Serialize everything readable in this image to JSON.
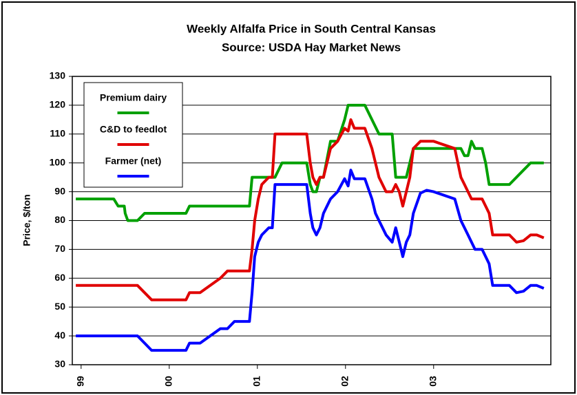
{
  "chart_data": {
    "type": "line",
    "title": "Weekly Alfalfa Price in South Central Kansas",
    "subtitle": "Source: USDA Hay Market News",
    "y_label": "Price, $/ton",
    "x": [
      1998.94,
      1999.25,
      1999.37,
      1999.42,
      1999.49,
      1999.5,
      1999.53,
      1999.64,
      1999.72,
      1999.8,
      1999.95,
      2000.19,
      2000.23,
      2000.35,
      2000.58,
      2000.66,
      2000.74,
      2000.85,
      2000.91,
      2000.94,
      2000.97,
      2001.01,
      2001.05,
      2001.13,
      2001.17,
      2001.2,
      2001.28,
      2001.44,
      2001.56,
      2001.6,
      2001.63,
      2001.67,
      2001.71,
      2001.75,
      2001.83,
      2001.91,
      2001.99,
      2002.03,
      2002.06,
      2002.1,
      2002.14,
      2002.22,
      2002.3,
      2002.34,
      2002.38,
      2002.46,
      2002.53,
      2002.57,
      2002.61,
      2002.65,
      2002.69,
      2002.73,
      2002.77,
      2002.85,
      2002.92,
      2003.0,
      2003.24,
      2003.31,
      2003.35,
      2003.39,
      2003.43,
      2003.47,
      2003.55,
      2003.59,
      2003.63,
      2003.67,
      2003.7,
      2003.86,
      2003.94,
      2004.02,
      2004.1,
      2004.17,
      2004.25
    ],
    "series": [
      {
        "name": "Premium dairy",
        "color": "#00a000",
        "values": [
          87.5,
          87.5,
          87.5,
          85,
          85,
          82.5,
          80,
          80,
          82.5,
          82.5,
          82.5,
          82.5,
          85,
          85,
          85,
          85,
          85,
          85,
          85,
          95,
          95,
          95,
          95,
          95,
          95,
          95,
          100,
          100,
          100,
          92.5,
          90,
          90,
          95,
          95,
          107.5,
          107.5,
          115,
          120,
          120,
          120,
          120,
          120,
          115,
          112.5,
          110,
          110,
          110,
          95,
          95,
          95,
          95,
          100,
          105,
          105,
          105,
          105,
          105,
          105,
          102.5,
          102.5,
          107.5,
          105,
          105,
          100,
          92.5,
          92.5,
          92.5,
          92.5,
          95,
          97.5,
          100,
          100,
          100
        ]
      },
      {
        "name": "C&D to feedlot",
        "color": "#e00000",
        "values": [
          57.5,
          57.5,
          57.5,
          57.5,
          57.5,
          57.5,
          57.5,
          57.5,
          55,
          52.5,
          52.5,
          52.5,
          55,
          55,
          60,
          62.5,
          62.5,
          62.5,
          62.5,
          70,
          80,
          87.5,
          92.5,
          95,
          95,
          110,
          110,
          110,
          110,
          100,
          95,
          92.5,
          95,
          95,
          105,
          107.5,
          112,
          111,
          115,
          112,
          112,
          112,
          105,
          100,
          95,
          90,
          90,
          92.5,
          90,
          85,
          90,
          95,
          105,
          107.5,
          107.5,
          107.5,
          105,
          95,
          92.5,
          90,
          87.5,
          87.5,
          87.5,
          85,
          82.5,
          75,
          75,
          75,
          72.5,
          73,
          75,
          75,
          74
        ]
      },
      {
        "name": "Farmer (net)",
        "color": "#0000ff",
        "values": [
          40,
          40,
          40,
          40,
          40,
          40,
          40,
          40,
          37.5,
          35,
          35,
          35,
          37.5,
          37.5,
          42.5,
          42.5,
          45,
          45,
          45,
          55,
          67.5,
          72.5,
          75,
          77.5,
          77.5,
          92.5,
          92.5,
          92.5,
          92.5,
          82.5,
          77.5,
          75,
          77.5,
          82.5,
          87.5,
          90,
          94.5,
          92,
          97.5,
          94.5,
          94.5,
          94.5,
          87.5,
          82.5,
          80,
          75,
          72.5,
          77.5,
          72.5,
          67.5,
          72.5,
          75,
          82.5,
          89.5,
          90.5,
          90,
          87.5,
          80,
          77.5,
          75,
          72.5,
          70,
          70,
          67.5,
          65,
          57.5,
          57.5,
          57.5,
          55,
          55.5,
          57.5,
          57.5,
          56.5
        ]
      }
    ],
    "xlim": [
      1998.9,
      2004.33
    ],
    "xticks": [
      {
        "value": 1999,
        "label": "99"
      },
      {
        "value": 2000,
        "label": "00"
      },
      {
        "value": 2001,
        "label": "01"
      },
      {
        "value": 2002,
        "label": "02"
      },
      {
        "value": 2003,
        "label": "03"
      }
    ],
    "ylim": [
      30,
      130
    ],
    "yticks": [
      30,
      40,
      50,
      60,
      70,
      80,
      90,
      100,
      110,
      120,
      130
    ],
    "grid": true,
    "legend": "upper left"
  }
}
